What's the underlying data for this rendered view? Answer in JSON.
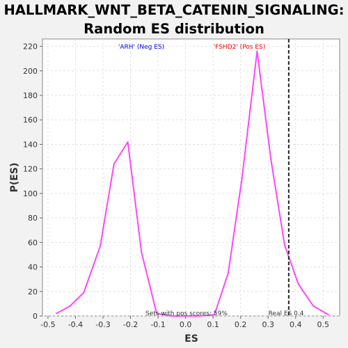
{
  "chart_data": {
    "type": "line",
    "title_line1": "HALLMARK_WNT_BETA_CATENIN_SIGNALING:",
    "title_line2": "Random ES distribution",
    "xlabel": "ES",
    "ylabel": "P(ES)",
    "xlim": [
      -0.52,
      0.56
    ],
    "ylim": [
      0,
      226
    ],
    "xticks": [
      "-0.5",
      "-0.4",
      "-0.3",
      "-0.2",
      "-0.1",
      "0.0",
      "0.1",
      "0.2",
      "0.3",
      "0.4",
      "0.5"
    ],
    "yticks": [
      "0",
      "20",
      "40",
      "60",
      "80",
      "100",
      "120",
      "140",
      "160",
      "180",
      "200",
      "220"
    ],
    "grid": true,
    "line_color": "#ff44ff",
    "series": [
      {
        "x": [
          -0.47,
          -0.42,
          -0.37,
          -0.31,
          -0.26,
          -0.21,
          -0.16,
          -0.105,
          -0.05,
          0.0,
          0.05,
          0.105,
          0.155,
          0.205,
          0.26,
          0.31,
          0.36,
          0.41,
          0.465,
          0.52
        ],
        "values": [
          2,
          8,
          19,
          57,
          124,
          142,
          52,
          2,
          0,
          0,
          0,
          1,
          35,
          112,
          216,
          128,
          58,
          26,
          8,
          1
        ]
      }
    ],
    "real_es": 0.375,
    "real_es_label": "Real ES 0.4",
    "neg_label": "'ARH' (Neg ES)",
    "neg_color": "#0000ff",
    "pos_label": "'FSHD2' (Pos ES)",
    "pos_color": "#ff0000",
    "pos_scores_label": "Sets with pos scores: 59%"
  }
}
